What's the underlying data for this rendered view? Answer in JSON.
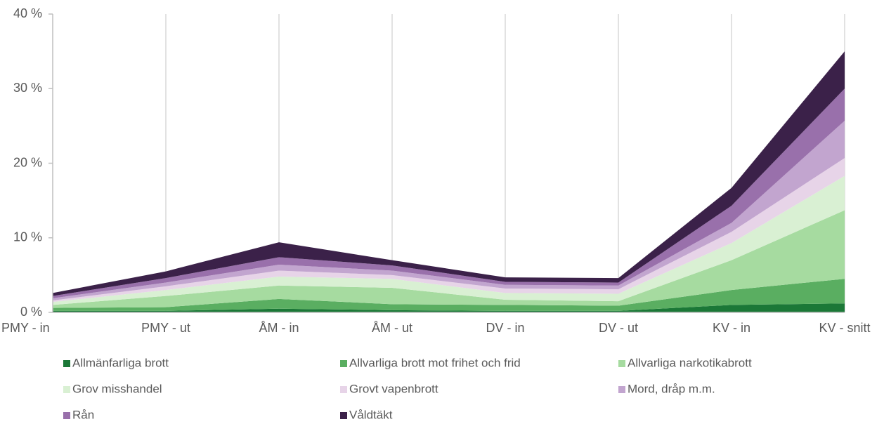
{
  "chart_data": {
    "type": "stacked-area",
    "categories": [
      "PMY - in",
      "PMY - ut",
      "ÅM - in",
      "ÅM - ut",
      "DV - in",
      "DV - ut",
      "KV - in",
      "KV - snitt"
    ],
    "series": [
      {
        "name": "Allmänfarliga brott",
        "color": "#1b7837",
        "values": [
          0.2,
          0.2,
          0.5,
          0.3,
          0.2,
          0.2,
          1.0,
          1.2
        ]
      },
      {
        "name": "Allvarliga brott mot frihet och frid",
        "color": "#5aae61",
        "values": [
          0.4,
          0.5,
          1.3,
          0.8,
          0.8,
          0.7,
          2.0,
          3.3
        ]
      },
      {
        "name": "Allvarliga narkotikabrott",
        "color": "#a6dba0",
        "values": [
          0.4,
          1.5,
          1.8,
          2.2,
          0.7,
          0.6,
          4.0,
          9.2
        ]
      },
      {
        "name": "Grov misshandel",
        "color": "#d9f0d3",
        "values": [
          0.4,
          0.8,
          1.2,
          1.2,
          0.9,
          1.0,
          2.3,
          4.6
        ]
      },
      {
        "name": "Grovt vapenbrott",
        "color": "#e7d4e8",
        "values": [
          0.2,
          0.5,
          0.8,
          0.5,
          0.6,
          0.6,
          1.5,
          2.4
        ]
      },
      {
        "name": "Mord, dråp m.m.",
        "color": "#c2a5cf",
        "values": [
          0.3,
          0.5,
          0.8,
          0.6,
          0.5,
          0.5,
          1.2,
          5.0
        ]
      },
      {
        "name": "Rån",
        "color": "#9970ab",
        "values": [
          0.3,
          0.6,
          1.0,
          0.7,
          0.4,
          0.4,
          2.3,
          4.3
        ]
      },
      {
        "name": "Våldtäkt",
        "color": "#3b2149",
        "values": [
          0.4,
          0.9,
          2.0,
          0.7,
          0.6,
          0.6,
          2.4,
          5.0
        ]
      }
    ],
    "ylim": [
      0,
      40
    ],
    "yticks": [
      {
        "value": 0,
        "label": "0 %"
      },
      {
        "value": 10,
        "label": "10 %"
      },
      {
        "value": 20,
        "label": "20 %"
      },
      {
        "value": 30,
        "label": "30 %"
      },
      {
        "value": 40,
        "label": "40 %"
      }
    ],
    "grid": "x"
  }
}
